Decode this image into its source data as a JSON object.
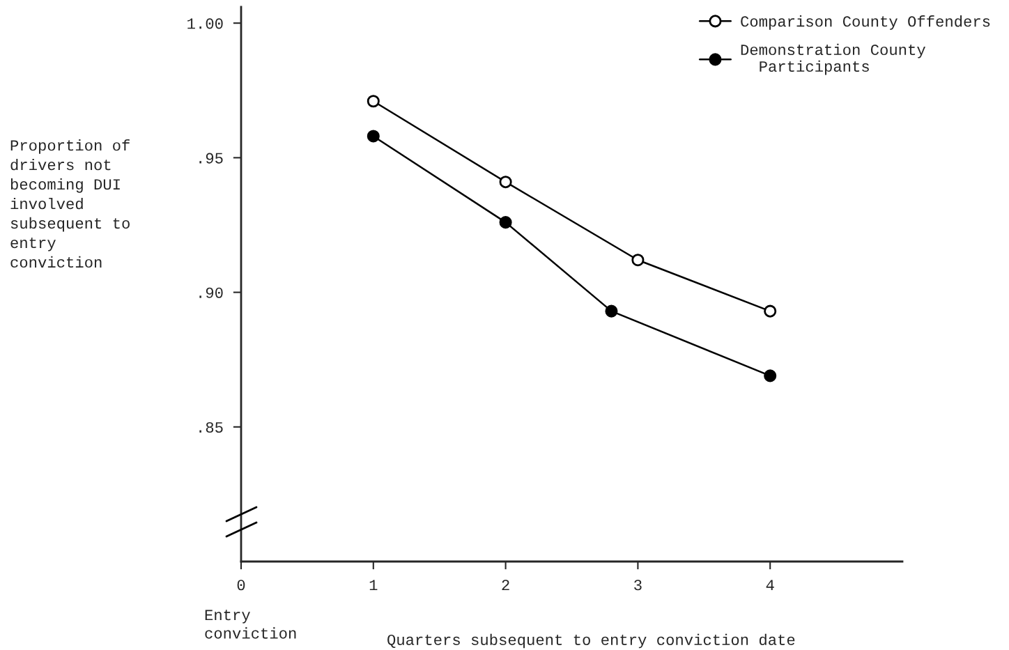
{
  "chart_data": {
    "type": "line",
    "xlabel": "Quarters subsequent to entry conviction date",
    "ylabel": "Proportion of\ndrivers not\nbecoming DUI\ninvolved\nsubsequent to\nentry\nconviction",
    "annotations": [
      "Entry\nconviction"
    ],
    "series": [
      {
        "name": "Comparison County Offenders",
        "color": "#000000",
        "x": [
          1,
          2,
          3,
          4
        ],
        "values": [
          0.971,
          0.941,
          0.912,
          0.893
        ]
      },
      {
        "name": "Demonstration County\n  Participants",
        "color": "#000000",
        "x": [
          1,
          2,
          2.8,
          4
        ],
        "values": [
          0.958,
          0.926,
          0.893,
          0.869
        ]
      }
    ],
    "xlim": [
      0,
      5
    ],
    "xticks": [
      0,
      1,
      2,
      3,
      4
    ],
    "ylim": [
      0.8,
      1.006
    ],
    "yticks": [
      {
        "value": 1.0,
        "label": "1.00"
      },
      {
        "value": 0.95,
        "label": ".95"
      },
      {
        "value": 0.9,
        "label": ".90"
      },
      {
        "value": 0.85,
        "label": ".85"
      }
    ],
    "marker": "circle",
    "line_style": "solid",
    "grid": false,
    "legend": "top right"
  }
}
